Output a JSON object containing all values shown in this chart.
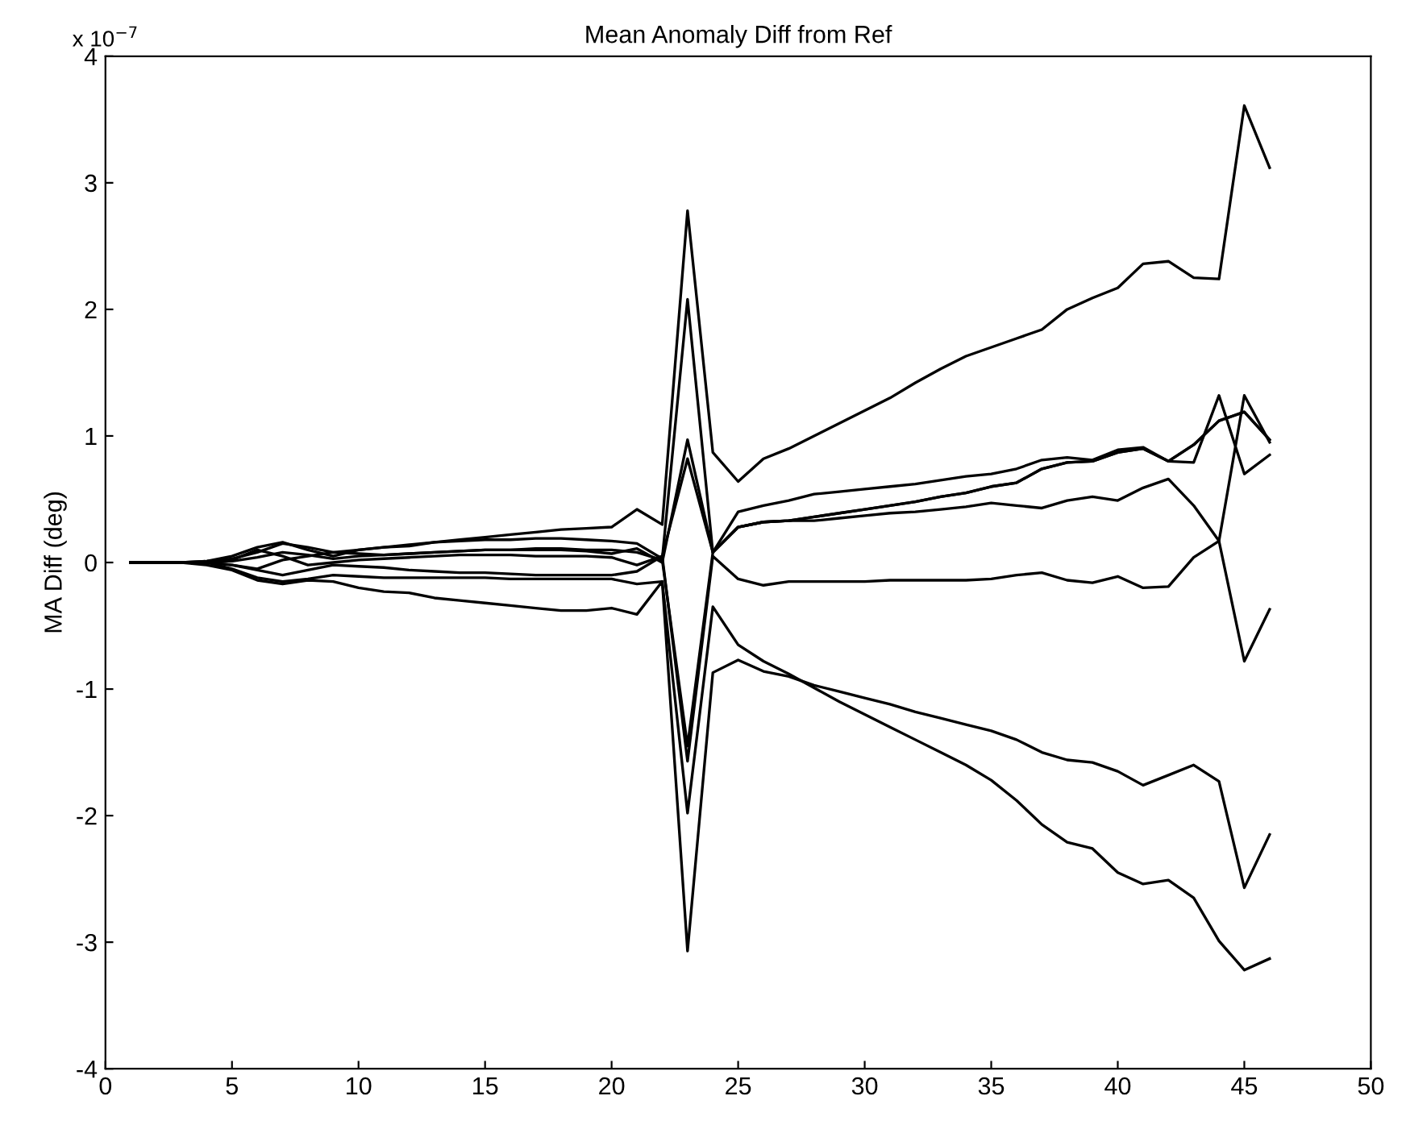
{
  "chart_data": {
    "type": "line",
    "title": "Mean Anomaly Diff from Ref",
    "ylabel": "MA Diff (deg)",
    "annotations": [
      "x 10$^{−7}$"
    ],
    "x": [
      1,
      2,
      3,
      4,
      5,
      6,
      7,
      8,
      9,
      10,
      11,
      12,
      13,
      14,
      15,
      16,
      17,
      18,
      19,
      20,
      21,
      22,
      23,
      24,
      25,
      26,
      27,
      28,
      29,
      30,
      31,
      32,
      33,
      34,
      35,
      36,
      37,
      38,
      39,
      40,
      41,
      42,
      43,
      44,
      45,
      46
    ],
    "xlim": [
      0,
      50
    ],
    "xticks": [
      0,
      5,
      10,
      15,
      20,
      25,
      30,
      35,
      40,
      45,
      50
    ],
    "ylim": [
      -4,
      4
    ],
    "yticks": [
      -4,
      -3,
      -2,
      -1,
      0,
      1,
      2,
      3,
      4
    ],
    "grid": false,
    "marker": "none",
    "line_style": "solid",
    "series": [
      {
        "color": "#000000",
        "values": [
          0,
          0,
          0,
          0.01,
          0.03,
          0.08,
          0.15,
          0.12,
          0.08,
          0.1,
          0.12,
          0.13,
          0.16,
          0.18,
          0.2,
          0.22,
          0.24,
          0.26,
          0.27,
          0.28,
          0.42,
          0.3,
          2.78,
          0.87,
          0.64,
          0.82,
          0.9,
          1.0,
          1.1,
          1.2,
          1.3,
          1.42,
          1.53,
          1.63,
          1.7,
          1.77,
          1.84,
          2.0,
          2.09,
          2.17,
          2.36,
          2.38,
          2.25,
          2.24,
          3.61,
          3.12
        ]
      },
      {
        "color": "#000000",
        "values": [
          0,
          0,
          0,
          0.01,
          0.05,
          0.12,
          0.16,
          0.1,
          0.05,
          0.1,
          0.12,
          0.14,
          0.16,
          0.17,
          0.18,
          0.18,
          0.19,
          0.19,
          0.18,
          0.17,
          0.15,
          0.03,
          2.08,
          0.08,
          0.28,
          0.32,
          0.33,
          0.36,
          0.39,
          0.42,
          0.45,
          0.48,
          0.52,
          0.55,
          0.6,
          0.63,
          0.74,
          0.79,
          0.8,
          0.87,
          0.9,
          0.8,
          0.93,
          1.12,
          1.19,
          0.97
        ]
      },
      {
        "color": "#000000",
        "values": [
          0,
          0,
          0,
          0,
          -0.02,
          -0.05,
          0.02,
          0.05,
          0.08,
          0.07,
          0.06,
          0.07,
          0.08,
          0.09,
          0.1,
          0.1,
          0.1,
          0.1,
          0.09,
          0.07,
          0.11,
          0.0,
          0.97,
          0.08,
          0.4,
          0.45,
          0.49,
          0.54,
          0.56,
          0.58,
          0.6,
          0.62,
          0.65,
          0.68,
          0.7,
          0.74,
          0.81,
          0.83,
          0.81,
          0.89,
          0.91,
          0.8,
          0.79,
          1.32,
          0.7,
          0.85
        ]
      },
      {
        "color": "#000000",
        "values": [
          0,
          0,
          0,
          0,
          0.02,
          0.1,
          0.05,
          -0.02,
          0.0,
          0.02,
          0.03,
          0.04,
          0.05,
          0.06,
          0.06,
          0.06,
          0.05,
          0.05,
          0.05,
          0.04,
          -0.02,
          0.05,
          0.82,
          0.08,
          0.28,
          0.32,
          0.33,
          0.33,
          0.35,
          0.37,
          0.39,
          0.4,
          0.42,
          0.44,
          0.47,
          0.45,
          0.43,
          0.49,
          0.52,
          0.49,
          0.59,
          0.66,
          0.45,
          0.17,
          -0.78,
          -0.37
        ]
      },
      {
        "color": "#000000",
        "values": [
          0,
          0,
          0,
          0,
          -0.02,
          -0.06,
          -0.1,
          -0.06,
          -0.02,
          -0.03,
          -0.04,
          -0.06,
          -0.07,
          -0.08,
          -0.08,
          -0.09,
          -0.1,
          -0.1,
          -0.1,
          -0.1,
          -0.07,
          0.05,
          -1.57,
          0.05,
          -0.13,
          -0.18,
          -0.15,
          -0.15,
          -0.15,
          -0.15,
          -0.14,
          -0.14,
          -0.14,
          -0.14,
          -0.13,
          -0.1,
          -0.08,
          -0.14,
          -0.16,
          -0.11,
          -0.2,
          -0.19,
          0.04,
          0.17,
          1.32,
          0.95
        ]
      },
      {
        "color": "#000000",
        "values": [
          0,
          0,
          0,
          0,
          -0.05,
          -0.12,
          -0.15,
          -0.13,
          -0.1,
          -0.11,
          -0.12,
          -0.12,
          -0.12,
          -0.12,
          -0.12,
          -0.13,
          -0.13,
          -0.13,
          -0.13,
          -0.13,
          -0.17,
          -0.15,
          -1.98,
          -0.35,
          -0.65,
          -0.78,
          -0.88,
          -0.99,
          -1.1,
          -1.2,
          -1.3,
          -1.4,
          -1.5,
          -1.6,
          -1.72,
          -1.88,
          -2.07,
          -2.21,
          -2.26,
          -2.45,
          -2.54,
          -2.51,
          -2.65,
          -2.99,
          -3.22,
          -3.13
        ]
      },
      {
        "color": "#000000",
        "values": [
          0,
          0,
          0,
          -0.02,
          -0.06,
          -0.14,
          -0.17,
          -0.14,
          -0.15,
          -0.2,
          -0.23,
          -0.24,
          -0.28,
          -0.3,
          -0.32,
          -0.34,
          -0.36,
          -0.38,
          -0.38,
          -0.36,
          -0.41,
          -0.15,
          -3.07,
          -0.87,
          -0.77,
          -0.86,
          -0.9,
          -0.97,
          -1.02,
          -1.07,
          -1.12,
          -1.18,
          -1.23,
          -1.28,
          -1.33,
          -1.4,
          -1.5,
          -1.56,
          -1.58,
          -1.65,
          -1.76,
          -1.68,
          -1.6,
          -1.73,
          -2.57,
          -2.15
        ]
      },
      {
        "color": "#000000",
        "values": [
          0,
          0,
          0,
          0,
          0.01,
          0.04,
          0.08,
          0.06,
          0.03,
          0.05,
          0.06,
          0.07,
          0.08,
          0.09,
          0.1,
          0.1,
          0.11,
          0.11,
          0.1,
          0.1,
          0.08,
          0.02,
          -1.45,
          0.08,
          0.28,
          0.32,
          0.33,
          0.36,
          0.39,
          0.42,
          0.45,
          0.48,
          0.52,
          0.55,
          0.6,
          0.63,
          0.74,
          0.79,
          0.8,
          0.87,
          0.9,
          0.8,
          0.93,
          1.12,
          1.19,
          0.97
        ]
      }
    ]
  }
}
